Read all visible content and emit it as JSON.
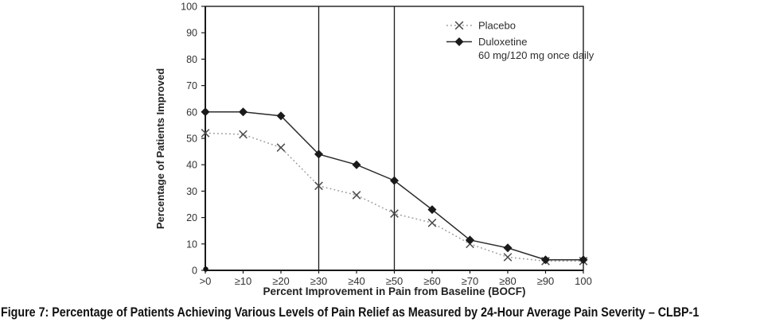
{
  "figure": {
    "caption": "Figure 7: Percentage of Patients Achieving Various Levels of Pain Relief as Measured by 24-Hour Average Pain Severity – CLBP-1"
  },
  "chart_data": {
    "type": "line",
    "title": "",
    "xlabel": "Percent Improvement in Pain from Baseline (BOCF)",
    "ylabel": "Percentage of Patients Improved",
    "ylim": [
      0,
      100
    ],
    "yticks": [
      0,
      10,
      20,
      30,
      40,
      50,
      60,
      70,
      80,
      90,
      100
    ],
    "categories": [
      ">0",
      "≥10",
      "≥20",
      "≥30",
      "≥40",
      "≥50",
      "≥60",
      "≥70",
      "≥80",
      "≥90",
      "100"
    ],
    "series": [
      {
        "name": "Placebo",
        "legend_lines": [
          "Placebo"
        ],
        "style": "dotted",
        "marker": "x",
        "color": "#9a9a9a",
        "marker_color": "#4d4d4d",
        "values": [
          52,
          51.5,
          46.5,
          32,
          28.5,
          21.5,
          18,
          10,
          5,
          3.5,
          3.5
        ]
      },
      {
        "name": "Duloxetine 60 mg/120 mg once daily",
        "legend_lines": [
          "Duloxetine",
          "60 mg/120 mg once daily"
        ],
        "style": "solid",
        "marker": "diamond",
        "color": "#2b2b2b",
        "marker_color": "#1a1a1a",
        "values": [
          60,
          60,
          58.5,
          44,
          40,
          34,
          23,
          11.5,
          8.5,
          4,
          4
        ]
      }
    ],
    "reference_lines": [
      "≥30",
      "≥50"
    ],
    "legend_position": "top-right",
    "grid": "off",
    "axis_color": "#1a1a1a",
    "tick_label_color": "#333333",
    "axis_title_color": "#222222"
  }
}
